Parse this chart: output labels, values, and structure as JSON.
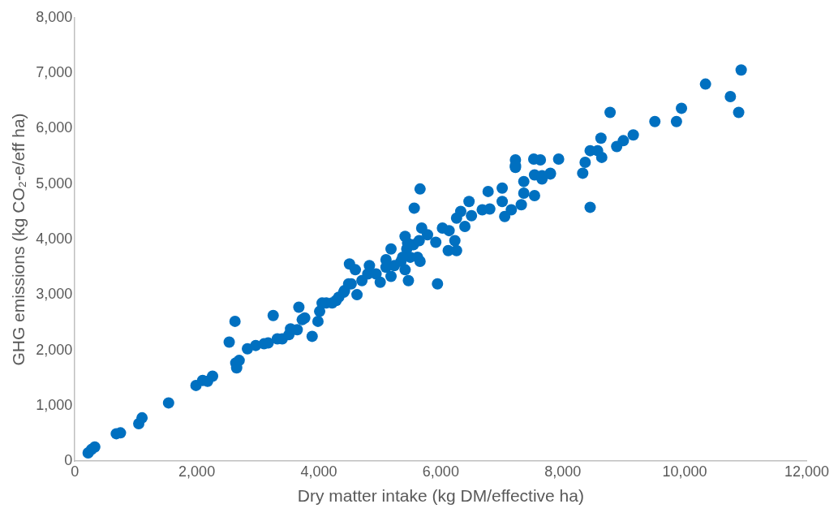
{
  "chart_data": {
    "type": "scatter",
    "xlabel": "Dry matter intake (kg DM/effective ha)",
    "ylabel": "GHG emissions (kg CO₂-e/eff ha)",
    "xlim": [
      0,
      12000
    ],
    "ylim": [
      0,
      8000
    ],
    "xticks": [
      0,
      {
        "value": 2000,
        "label": "2,000"
      },
      {
        "value": 4000,
        "label": "4,000"
      },
      {
        "value": 6000,
        "label": "6,000"
      },
      {
        "value": 8000,
        "label": "8,000"
      },
      {
        "value": 10000,
        "label": "10,000"
      },
      {
        "value": 12000,
        "label": "12,000"
      }
    ],
    "yticks": [
      0,
      {
        "value": 1000,
        "label": "1,000"
      },
      {
        "value": 2000,
        "label": "2,000"
      },
      {
        "value": 3000,
        "label": "3,000"
      },
      {
        "value": 4000,
        "label": "4,000"
      },
      {
        "value": 5000,
        "label": "5,000"
      },
      {
        "value": 6000,
        "label": "6,000"
      },
      {
        "value": 7000,
        "label": "7,000"
      },
      {
        "value": 8000,
        "label": "8,000"
      }
    ],
    "grid": false,
    "legend": false,
    "marker": "circle",
    "series": [
      {
        "color": "#0070c0",
        "x": [
          218,
          272,
          327,
          680,
          748,
          1048,
          1102,
          1537,
          1986,
          2095,
          2177,
          2258,
          2531,
          2626,
          2639,
          2653,
          2694,
          2830,
          2966,
          3102,
          3170,
          3252,
          3320,
          3401,
          3510,
          3537,
          3646,
          3673,
          3728,
          3769,
          3891,
          3986,
          4014,
          4054,
          4122,
          4218,
          4327,
          4422,
          4531,
          4503,
          4599,
          4626,
          4707,
          4803,
          4830,
          4939,
          5007,
          5102,
          5184,
          5238,
          5347,
          5415,
          5442,
          5497,
          5551,
          5619,
          5946,
          5469,
          5660,
          5565,
          6463,
          6776,
          7007,
          7224,
          7361,
          7537,
          7796,
          7660,
          7007,
          7156,
          7048,
          7320,
          7537,
          7361,
          6680,
          6803,
          6503,
          6327,
          6259,
          6395,
          6136,
          6027,
          6231,
          6122,
          6259,
          5918,
          5782,
          5687,
          5646,
          5415,
          5456,
          5660,
          5184,
          5374,
          5102,
          10925,
          10340,
          10748,
          10884,
          9946,
          9864,
          9510,
          8776,
          9156,
          8993,
          8884,
          8626,
          8449,
          8571,
          8639,
          8367,
          8327,
          8449,
          7932,
          7796,
          7660,
          7633,
          7524,
          7224,
          7224,
          4285,
          4408,
          4489
        ],
        "values": [
          150,
          210,
          255,
          495,
          510,
          676,
          781,
          1051,
          1366,
          1456,
          1441,
          1532,
          2147,
          2523,
          1772,
          1682,
          1817,
          2027,
          2087,
          2117,
          2132,
          2628,
          2207,
          2207,
          2282,
          2387,
          2372,
          2778,
          2553,
          2583,
          2252,
          2523,
          2703,
          2853,
          2853,
          2853,
          2958,
          3078,
          3198,
          3558,
          3453,
          3003,
          3258,
          3378,
          3528,
          3378,
          3228,
          3498,
          3333,
          3528,
          3603,
          3453,
          3829,
          3679,
          3904,
          3679,
          3198,
          3258,
          4910,
          4565,
          4685,
          4865,
          4925,
          5300,
          5045,
          5165,
          5195,
          5090,
          4685,
          4535,
          4414,
          4625,
          4790,
          4835,
          4535,
          4550,
          4429,
          4505,
          4384,
          4234,
          4159,
          4204,
          3979,
          3799,
          3799,
          3949,
          4084,
          4204,
          3979,
          4054,
          3934,
          3604,
          3829,
          3679,
          3634,
          7057,
          6802,
          6577,
          6291,
          6366,
          6126,
          6126,
          6291,
          5886,
          5781,
          5676,
          5826,
          5601,
          5601,
          5480,
          5390,
          5195,
          4580,
          5450,
          5180,
          5150,
          5435,
          5450,
          5435,
          5330,
          2898,
          3048,
          3198
        ]
      }
    ]
  }
}
